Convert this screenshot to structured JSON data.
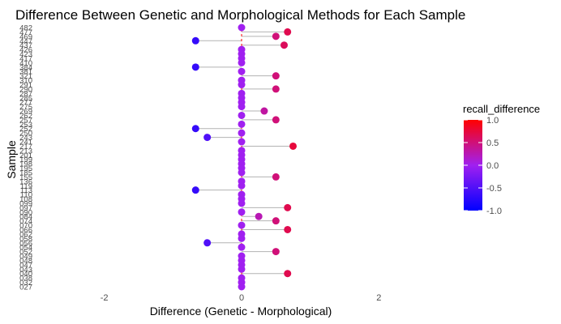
{
  "chart_data": {
    "type": "lollipop",
    "title": "Difference Between Genetic and Morphological Methods for Each Sample",
    "xlabel": "Difference (Genetic - Morphological)",
    "ylabel": "Sample",
    "xlim": [
      -3,
      3
    ],
    "xticks": [
      -2,
      0,
      2
    ],
    "reference_line": 0,
    "categories": [
      "482",
      "477",
      "469",
      "447",
      "437",
      "426",
      "423",
      "417",
      "410",
      "384",
      "381",
      "321",
      "310",
      "291",
      "290",
      "287",
      "285",
      "277",
      "275",
      "269",
      "262",
      "257",
      "253",
      "252",
      "250",
      "243",
      "241",
      "217",
      "213",
      "201",
      "199",
      "198",
      "195",
      "185",
      "155",
      "136",
      "119",
      "113",
      "110",
      "108",
      "099",
      "097",
      "090",
      "084",
      "074",
      "070",
      "066",
      "062",
      "058",
      "056",
      "054",
      "052",
      "049",
      "048",
      "047",
      "043",
      "040",
      "038",
      "032",
      "027"
    ],
    "values": [
      0.0,
      0.67,
      0.5,
      -0.67,
      0.62,
      0.0,
      0.0,
      0.0,
      0.0,
      -0.67,
      0.0,
      0.5,
      0.0,
      0.0,
      0.5,
      0.0,
      0.0,
      0.0,
      0.0,
      0.33,
      0.0,
      0.5,
      0.0,
      -0.67,
      0.0,
      -0.5,
      0.0,
      0.75,
      0.0,
      0.0,
      0.0,
      0.0,
      0.0,
      0.0,
      0.5,
      0.0,
      0.0,
      -0.67,
      0.0,
      0.0,
      0.0,
      0.67,
      0.0,
      0.25,
      0.5,
      0.0,
      0.67,
      0.0,
      0.0,
      -0.5,
      0.0,
      0.5,
      0.0,
      0.0,
      0.0,
      0.0,
      0.67,
      0.0,
      0.0,
      0.0
    ],
    "legend": {
      "title": "recall_difference",
      "position": "right",
      "ticks": [
        1.0,
        0.5,
        0.0,
        -0.5,
        -1.0
      ],
      "tick_labels": [
        "1.0",
        "0.5",
        "0.0",
        "-0.5",
        "-1.0"
      ],
      "colors": {
        "low": "#0000ff",
        "mid": "#a020f0",
        "high": "#ff0000"
      }
    },
    "colors": {
      "stem": "#b3b3b3",
      "reference": "#ff0000"
    },
    "grid": false
  }
}
